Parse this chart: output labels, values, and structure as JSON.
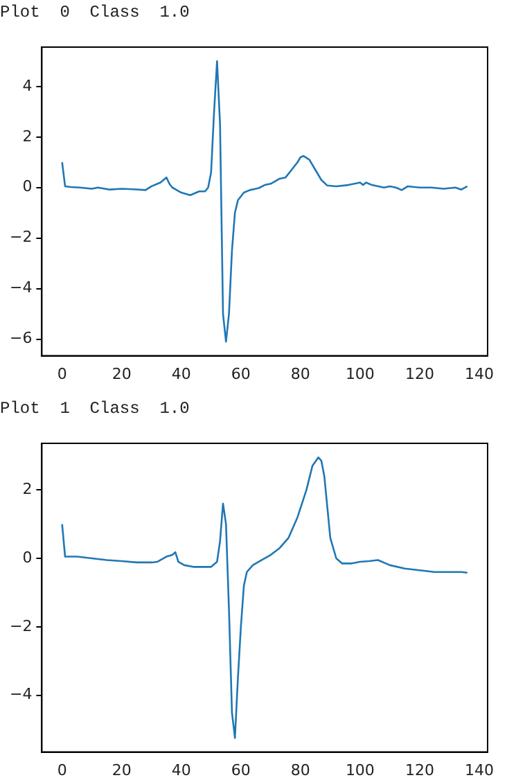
{
  "chart_data": [
    {
      "type": "line",
      "title": "Plot  0  Class  1.0",
      "grid": false,
      "legend": false,
      "xlim": [
        -6.8,
        142.8
      ],
      "xticks": [
        0,
        20,
        40,
        60,
        80,
        100,
        120,
        140
      ],
      "ylim": [
        -6.66,
        5.56
      ],
      "yticks": [
        {
          "value": -6,
          "label": "−6"
        },
        {
          "value": -4,
          "label": "−4"
        },
        {
          "value": -2,
          "label": "−2"
        },
        0,
        2,
        4
      ],
      "series": [
        {
          "color": "#1f77b4",
          "x": [
            0,
            1,
            3,
            6,
            10,
            12,
            16,
            20,
            24,
            28,
            30,
            33,
            35,
            36,
            37,
            40,
            43,
            46,
            48,
            49,
            50,
            51,
            52,
            53,
            54,
            55,
            56,
            57,
            58,
            59,
            61,
            63,
            65,
            66,
            68,
            70,
            73,
            75,
            77,
            79,
            80,
            81,
            83,
            85,
            87,
            89,
            92,
            96,
            100,
            101,
            102,
            104,
            108,
            110,
            112,
            114,
            116,
            120,
            124,
            128,
            132,
            134,
            136
          ],
          "values": [
            1.0,
            0.05,
            0.02,
            0.0,
            -0.05,
            0.0,
            -0.08,
            -0.05,
            -0.07,
            -0.1,
            0.05,
            0.2,
            0.4,
            0.15,
            0.0,
            -0.2,
            -0.3,
            -0.15,
            -0.15,
            0.0,
            0.6,
            3.0,
            5.0,
            2.5,
            -5.0,
            -6.1,
            -5.0,
            -2.5,
            -1.0,
            -0.5,
            -0.2,
            -0.1,
            -0.05,
            -0.02,
            0.1,
            0.15,
            0.35,
            0.4,
            0.7,
            1.0,
            1.2,
            1.25,
            1.1,
            0.7,
            0.3,
            0.08,
            0.05,
            0.1,
            0.2,
            0.1,
            0.2,
            0.1,
            0.0,
            0.05,
            0.0,
            -0.1,
            0.05,
            0.0,
            0.0,
            -0.05,
            0.0,
            -0.08,
            0.05
          ]
        }
      ]
    },
    {
      "type": "line",
      "title": "Plot  1  Class  1.0",
      "grid": false,
      "legend": false,
      "xlim": [
        -6.8,
        142.8
      ],
      "xticks": [
        0,
        20,
        40,
        60,
        80,
        100,
        120,
        140
      ],
      "ylim": [
        -5.66,
        3.36
      ],
      "yticks": [
        {
          "value": -4,
          "label": "−4"
        },
        {
          "value": -2,
          "label": "−2"
        },
        0,
        2
      ],
      "series": [
        {
          "color": "#1f77b4",
          "x": [
            0,
            1,
            5,
            10,
            15,
            20,
            25,
            30,
            32,
            35,
            37,
            38,
            39,
            41,
            44,
            50,
            52,
            53,
            54,
            55,
            56,
            57,
            58,
            59,
            60,
            61,
            62,
            64,
            67,
            70,
            73,
            76,
            79,
            82,
            84,
            86,
            87,
            88,
            89,
            90,
            92,
            94,
            97,
            100,
            103,
            106,
            110,
            115,
            120,
            125,
            130,
            134,
            136
          ],
          "values": [
            1.0,
            0.05,
            0.05,
            0.0,
            -0.05,
            -0.08,
            -0.12,
            -0.12,
            -0.1,
            0.05,
            0.1,
            0.18,
            -0.1,
            -0.2,
            -0.25,
            -0.25,
            -0.1,
            0.5,
            1.6,
            1.0,
            -1.5,
            -4.5,
            -5.25,
            -3.5,
            -2.0,
            -0.8,
            -0.4,
            -0.2,
            -0.05,
            0.1,
            0.3,
            0.6,
            1.2,
            2.0,
            2.7,
            2.95,
            2.85,
            2.4,
            1.5,
            0.6,
            0.0,
            -0.15,
            -0.15,
            -0.1,
            -0.08,
            -0.05,
            -0.2,
            -0.3,
            -0.35,
            -0.4,
            -0.4,
            -0.4,
            -0.42
          ]
        }
      ]
    }
  ]
}
